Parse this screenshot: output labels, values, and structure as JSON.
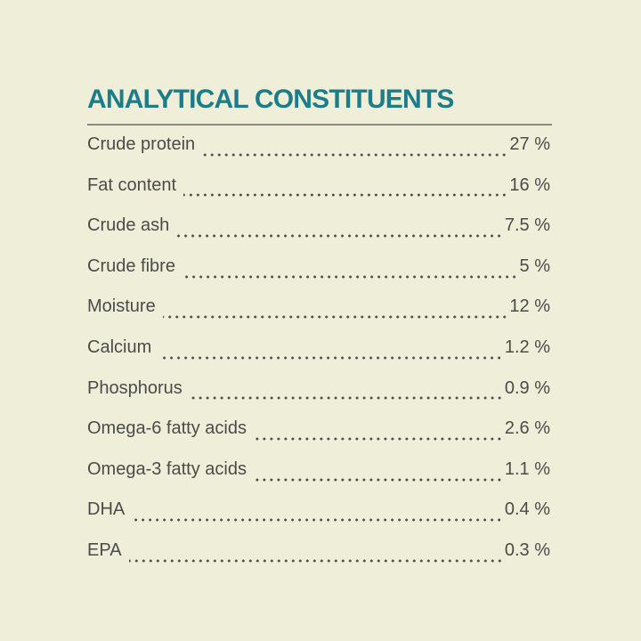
{
  "header": {
    "title": "ANALYTICAL CONSTITUENTS"
  },
  "table": {
    "rows": [
      [
        "Crude protein",
        "27 %"
      ],
      [
        "Fat content",
        "16 %"
      ],
      [
        "Crude ash",
        "7.5 %"
      ],
      [
        "Crude fibre",
        "5 %"
      ],
      [
        "Moisture",
        "12 %"
      ],
      [
        "Calcium",
        "1.2 %"
      ],
      [
        "Phosphorus",
        "0.9 %"
      ],
      [
        "Omega-6 fatty acids",
        "2.6 %"
      ],
      [
        "Omega-3 fatty acids",
        "1.1 %"
      ],
      [
        "DHA",
        "0.4 %"
      ],
      [
        "EPA",
        "0.3 %"
      ]
    ]
  }
}
